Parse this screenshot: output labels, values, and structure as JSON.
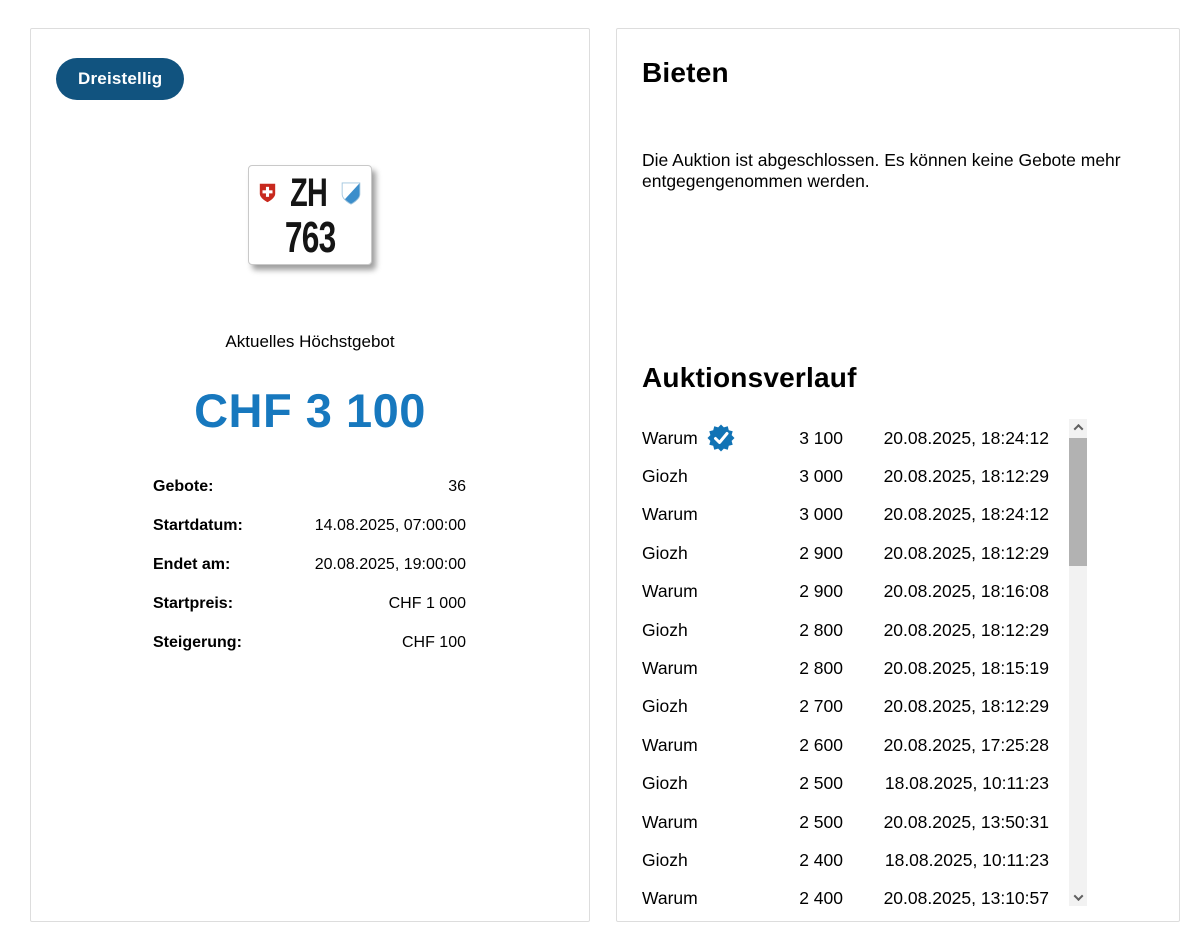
{
  "colors": {
    "badge_blue": "#11537f",
    "bid_blue": "#1778be",
    "seal_blue": "#1173b5",
    "swiss_red": "#c8291e",
    "canton_blue": "#3c8ecb",
    "card_border": "#dddddd"
  },
  "left_card": {
    "category_badge": "Dreistellig",
    "plate": {
      "canton_code": "ZH",
      "number": "763"
    },
    "highest_bid_label": "Aktuelles Höchstgebot",
    "highest_bid_value": "CHF 3 100",
    "details": [
      {
        "label": "Gebote:",
        "value": "36"
      },
      {
        "label": "Startdatum:",
        "value": "14.08.2025, 07:00:00"
      },
      {
        "label": "Endet am:",
        "value": "20.08.2025, 19:00:00"
      },
      {
        "label": "Startpreis:",
        "value": "CHF 1 000"
      },
      {
        "label": "Steigerung:",
        "value": "CHF 100"
      }
    ]
  },
  "right_card": {
    "bidding": {
      "title": "Bieten",
      "closed_message": "Die Auktion ist abgeschlossen. Es können keine Gebote mehr entgegengenommen werden."
    },
    "history": {
      "title": "Auktionsverlauf",
      "rows": [
        {
          "bidder": "Warum",
          "winner": true,
          "amount": "3 100",
          "timestamp": "20.08.2025, 18:24:12"
        },
        {
          "bidder": "Giozh",
          "winner": false,
          "amount": "3 000",
          "timestamp": "20.08.2025, 18:12:29"
        },
        {
          "bidder": "Warum",
          "winner": false,
          "amount": "3 000",
          "timestamp": "20.08.2025, 18:24:12"
        },
        {
          "bidder": "Giozh",
          "winner": false,
          "amount": "2 900",
          "timestamp": "20.08.2025, 18:12:29"
        },
        {
          "bidder": "Warum",
          "winner": false,
          "amount": "2 900",
          "timestamp": "20.08.2025, 18:16:08"
        },
        {
          "bidder": "Giozh",
          "winner": false,
          "amount": "2 800",
          "timestamp": "20.08.2025, 18:12:29"
        },
        {
          "bidder": "Warum",
          "winner": false,
          "amount": "2 800",
          "timestamp": "20.08.2025, 18:15:19"
        },
        {
          "bidder": "Giozh",
          "winner": false,
          "amount": "2 700",
          "timestamp": "20.08.2025, 18:12:29"
        },
        {
          "bidder": "Warum",
          "winner": false,
          "amount": "2 600",
          "timestamp": "20.08.2025, 17:25:28"
        },
        {
          "bidder": "Giozh",
          "winner": false,
          "amount": "2 500",
          "timestamp": "18.08.2025, 10:11:23"
        },
        {
          "bidder": "Warum",
          "winner": false,
          "amount": "2 500",
          "timestamp": "20.08.2025, 13:50:31"
        },
        {
          "bidder": "Giozh",
          "winner": false,
          "amount": "2 400",
          "timestamp": "18.08.2025, 10:11:23"
        },
        {
          "bidder": "Warum",
          "winner": false,
          "amount": "2 400",
          "timestamp": "20.08.2025, 13:10:57"
        }
      ]
    }
  }
}
